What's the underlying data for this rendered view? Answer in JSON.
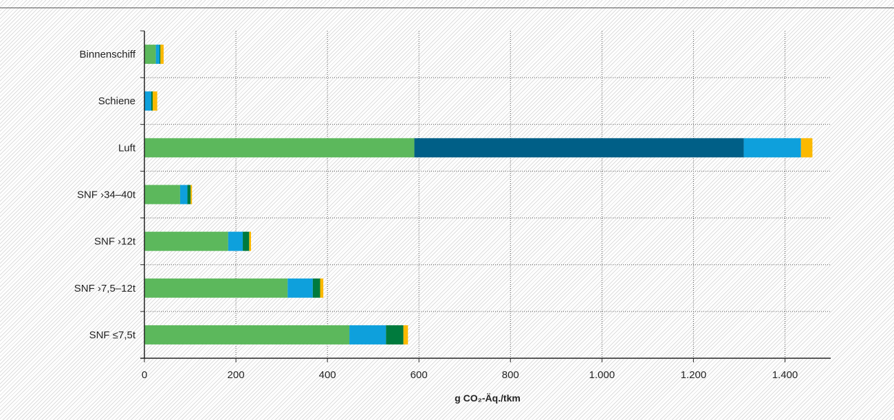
{
  "chart_data": {
    "type": "bar",
    "orientation": "horizontal",
    "stacked": true,
    "categories": [
      "Binnenschiff",
      "Schiene",
      "Luft",
      "SNF >34–40t",
      "SNF >12t",
      "SNF >7,5–12t",
      "SNF ≤7,5t"
    ],
    "category_labels": [
      "Binnenschiff",
      "Schiene",
      "Luft",
      "SNF ›34–40t",
      "SNF ›12t",
      "SNF ›7,5–12t",
      "SNF ≤7,5t"
    ],
    "series": [
      {
        "color": "#5cb85c",
        "values": [
          25,
          0,
          590,
          78,
          183,
          313,
          448
        ]
      },
      {
        "color": "#005f87",
        "values": [
          0,
          0,
          720,
          0,
          0,
          0,
          0
        ]
      },
      {
        "color": "#0ea0dc",
        "values": [
          8,
          15,
          125,
          16,
          32,
          55,
          80
        ]
      },
      {
        "color": "#007a3d",
        "values": [
          2,
          3,
          0,
          7,
          14,
          16,
          38
        ]
      },
      {
        "color": "#fbb900",
        "values": [
          7,
          10,
          25,
          3,
          4,
          7,
          10
        ]
      }
    ],
    "xlabel": "g CO₂-Äq./tkm",
    "xlim": [
      0,
      1500
    ],
    "xticks": [
      0,
      200,
      400,
      600,
      800,
      1000,
      1200,
      1400
    ],
    "xtick_labels": [
      "0",
      "200",
      "400",
      "600",
      "800",
      "1.000",
      "1.200",
      "1.400"
    ],
    "grid": true
  }
}
